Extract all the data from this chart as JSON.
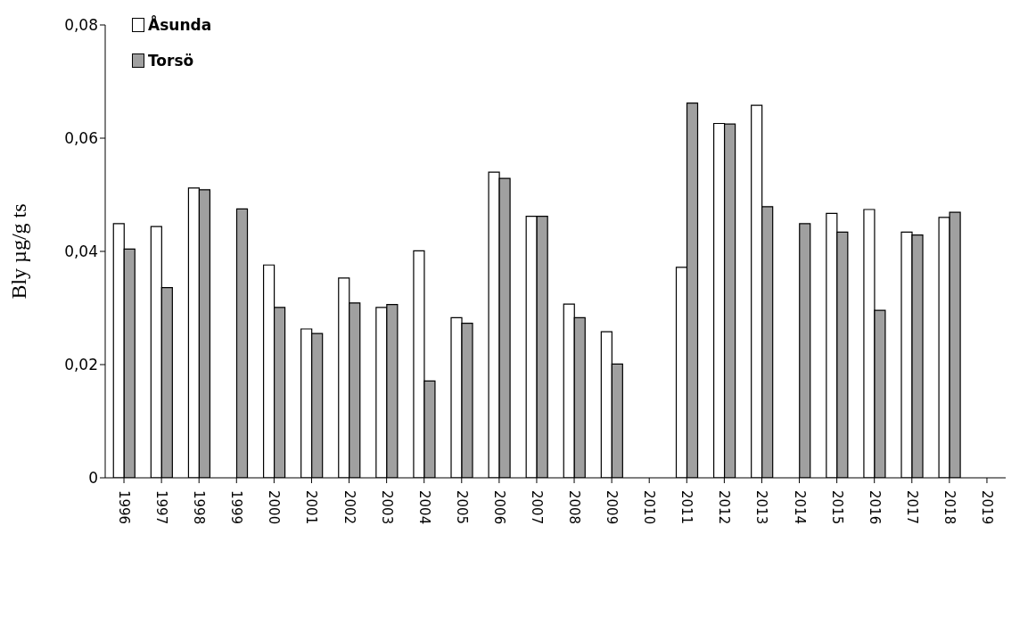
{
  "chart_data": {
    "type": "bar",
    "ylabel": "Bly µg/g ts",
    "categories": [
      "1996",
      "1997",
      "1998",
      "1999",
      "2000",
      "2001",
      "2002",
      "2003",
      "2004",
      "2005",
      "2006",
      "2007",
      "2008",
      "2009",
      "2010",
      "2011",
      "2012",
      "2013",
      "2014",
      "2015",
      "2016",
      "2017",
      "2018",
      "2019"
    ],
    "series": [
      {
        "name": "Åsunda",
        "color": "#ffffff",
        "values": [
          0.0449,
          0.0444,
          0.0512,
          null,
          0.0376,
          0.0263,
          0.0353,
          0.0301,
          0.0401,
          0.0283,
          0.054,
          0.0462,
          0.0307,
          0.0258,
          null,
          0.0372,
          0.0626,
          0.0658,
          null,
          0.0467,
          0.0474,
          0.0434,
          0.046,
          null
        ]
      },
      {
        "name": "Torsö",
        "color": "#a0a0a0",
        "values": [
          0.0404,
          0.0336,
          0.0509,
          0.0475,
          0.0301,
          0.0255,
          0.0309,
          0.0306,
          0.0171,
          0.0273,
          0.0529,
          0.0462,
          0.0283,
          0.0201,
          null,
          0.0662,
          0.0625,
          0.0479,
          0.0449,
          0.0434,
          0.0296,
          0.0429,
          0.0469,
          null
        ]
      }
    ],
    "ylim": [
      0,
      0.08
    ],
    "yticks": [
      0,
      {
        "value": 0.02,
        "label": "0,02"
      },
      {
        "value": 0.04,
        "label": "0,04"
      },
      {
        "value": 0.06,
        "label": "0,06"
      },
      {
        "value": 0.08,
        "label": "0,08"
      }
    ],
    "grid": false,
    "legend": "top left"
  }
}
